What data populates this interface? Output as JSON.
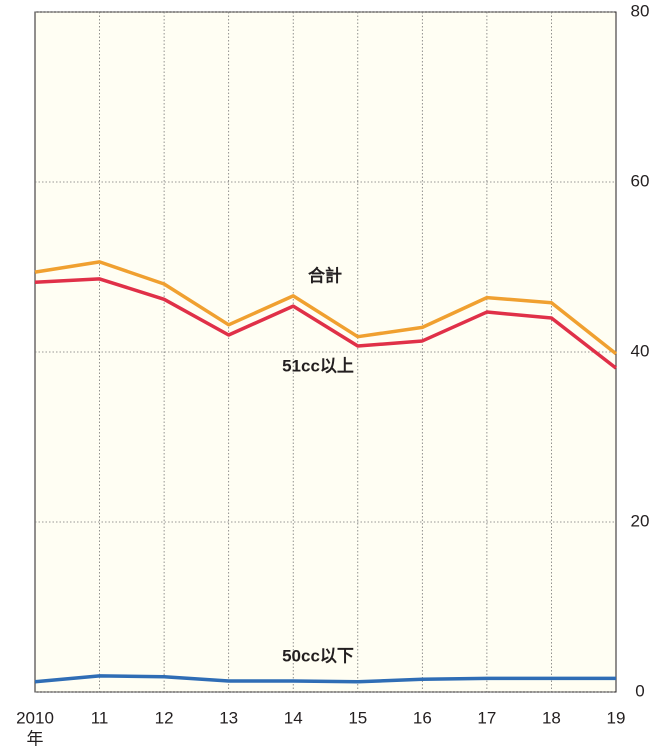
{
  "chart_data": {
    "type": "line",
    "categories": [
      "2010",
      "11",
      "12",
      "13",
      "14",
      "15",
      "16",
      "17",
      "18",
      "19"
    ],
    "x_unit": "年",
    "series": [
      {
        "name": "合計",
        "color": "#f0a030",
        "values": [
          49.4,
          50.6,
          48.0,
          43.2,
          46.6,
          41.8,
          42.9,
          46.4,
          45.8,
          39.8
        ]
      },
      {
        "name": "51cc以上",
        "color": "#e03048",
        "values": [
          48.2,
          48.6,
          46.2,
          42.0,
          45.4,
          40.7,
          41.3,
          44.7,
          44.0,
          38.1
        ]
      },
      {
        "name": "50cc以下",
        "color": "#2f6db5",
        "values": [
          1.2,
          1.9,
          1.8,
          1.3,
          1.3,
          1.2,
          1.5,
          1.6,
          1.6,
          1.6
        ]
      }
    ],
    "ylim": [
      0,
      80
    ],
    "yticks": [
      0,
      20,
      40,
      60,
      80
    ],
    "y_axis_side": "right",
    "grid": true
  }
}
